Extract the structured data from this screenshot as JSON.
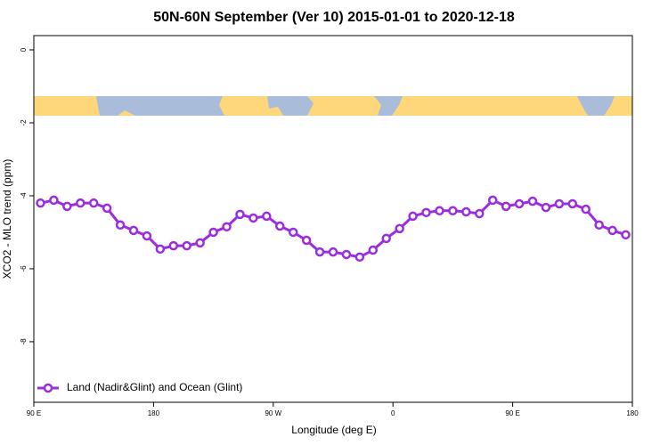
{
  "chart_data": {
    "type": "line",
    "title": "50N-60N September (Ver 10)   2015-01-01 to 2020-12-18",
    "x_label": "Longitude (deg E)",
    "y_label": "XCO2 - MLO trend (ppm)",
    "x": [
      95,
      105,
      115,
      125,
      135,
      145,
      155,
      165,
      175,
      185,
      195,
      205,
      215,
      225,
      235,
      245,
      255,
      265,
      275,
      285,
      295,
      305,
      315,
      325,
      335,
      345,
      355,
      365,
      375,
      385,
      395,
      405,
      415,
      425,
      435,
      445,
      455,
      465,
      475,
      485,
      495,
      505,
      515,
      525,
      535
    ],
    "series": [
      {
        "name": "Land (Nadir&Glint) and Ocean (Glint)",
        "color": "#9b2de0",
        "values": [
          -4.2,
          -4.12,
          -4.29,
          -4.2,
          -4.2,
          -4.34,
          -4.8,
          -4.95,
          -5.1,
          -5.46,
          -5.37,
          -5.37,
          -5.29,
          -5.0,
          -4.85,
          -4.51,
          -4.61,
          -4.56,
          -4.83,
          -5.0,
          -5.22,
          -5.54,
          -5.54,
          -5.61,
          -5.68,
          -5.49,
          -5.17,
          -4.9,
          -4.56,
          -4.46,
          -4.41,
          -4.41,
          -4.44,
          -4.49,
          -4.12,
          -4.29,
          -4.22,
          -4.15,
          -4.32,
          -4.22,
          -4.22,
          -4.37,
          -4.8,
          -4.95,
          -5.07
        ]
      }
    ],
    "xlim": [
      90,
      540
    ],
    "xticks": [
      {
        "value": 90,
        "label": "90 E"
      },
      180,
      {
        "value": 270,
        "label": "90 W"
      },
      {
        "value": 360,
        "label": "0"
      },
      {
        "value": 450,
        "label": "90 E"
      },
      {
        "value": 540,
        "label": "180"
      }
    ],
    "ylim": [
      -9.66,
      0.39
    ],
    "yticks": [
      0,
      -2,
      -4,
      -6,
      -8
    ],
    "legend": "bottom-left"
  }
}
